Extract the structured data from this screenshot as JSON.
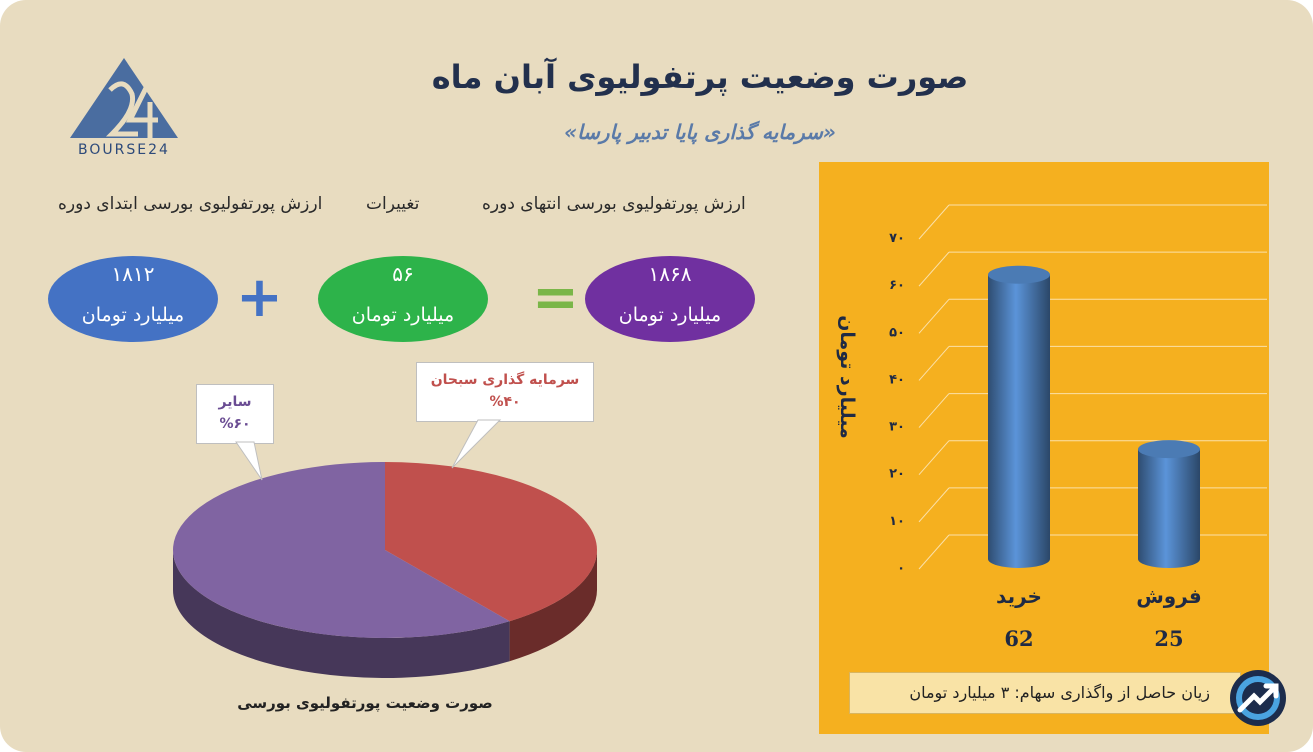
{
  "header": {
    "title": "صورت وضعیت پرتفولیوی آبان ماه",
    "subtitle": "«سرمایه گذاری پایا تدبیر پارسا»",
    "logo_text": "BOURSE24"
  },
  "summary": {
    "end_label": "ارزش پورتفولیوی بورسی انتهای دوره",
    "change_label": "تغییرات",
    "start_label": "ارزش پورتفولیوی بورسی ابتدای دوره",
    "start_value": "۱۸۱۲",
    "change_value": "۵۶",
    "end_value": "۱۸۶۸",
    "unit": "میلیارد تومان",
    "plus": "+",
    "equals": "=",
    "colors": {
      "start": "#4472c4",
      "change": "#2db34a",
      "end": "#7030a0",
      "ops": "#4472c4",
      "eq": "#7ab648"
    }
  },
  "pie": {
    "caption": "صورت وضعیت پورتفولیوی بورسی",
    "label_sobhan": "سرمایه گذاری سبحان",
    "pct_sobhan": "%۴۰",
    "label_other": "سایر",
    "pct_other": "%۶۰"
  },
  "bar_panel": {
    "ylabel": "میلیارد تومان",
    "footer": "زیان حاصل از واگذاری سهام:  ۳  میلیارد تومان"
  },
  "chart_data": [
    {
      "type": "pie",
      "title": "صورت وضعیت پورتفولیوی بورسی",
      "slices": [
        {
          "name": "سرمایه گذاری سبحان",
          "value": 40,
          "color": "#c0504d"
        },
        {
          "name": "سایر",
          "value": 60,
          "color": "#8064a2"
        }
      ]
    },
    {
      "type": "bar",
      "ylabel": "میلیارد تومان",
      "ylim": [
        0,
        70
      ],
      "yticks": [
        "۰",
        "۱۰",
        "۲۰",
        "۳۰",
        "۴۰",
        "۵۰",
        "۶۰",
        "۷۰"
      ],
      "categories": [
        "خرید",
        "فروش"
      ],
      "values": [
        62,
        25
      ],
      "value_labels": [
        "62",
        "25"
      ],
      "bar_color": "#4f81bd",
      "grid": true
    }
  ]
}
